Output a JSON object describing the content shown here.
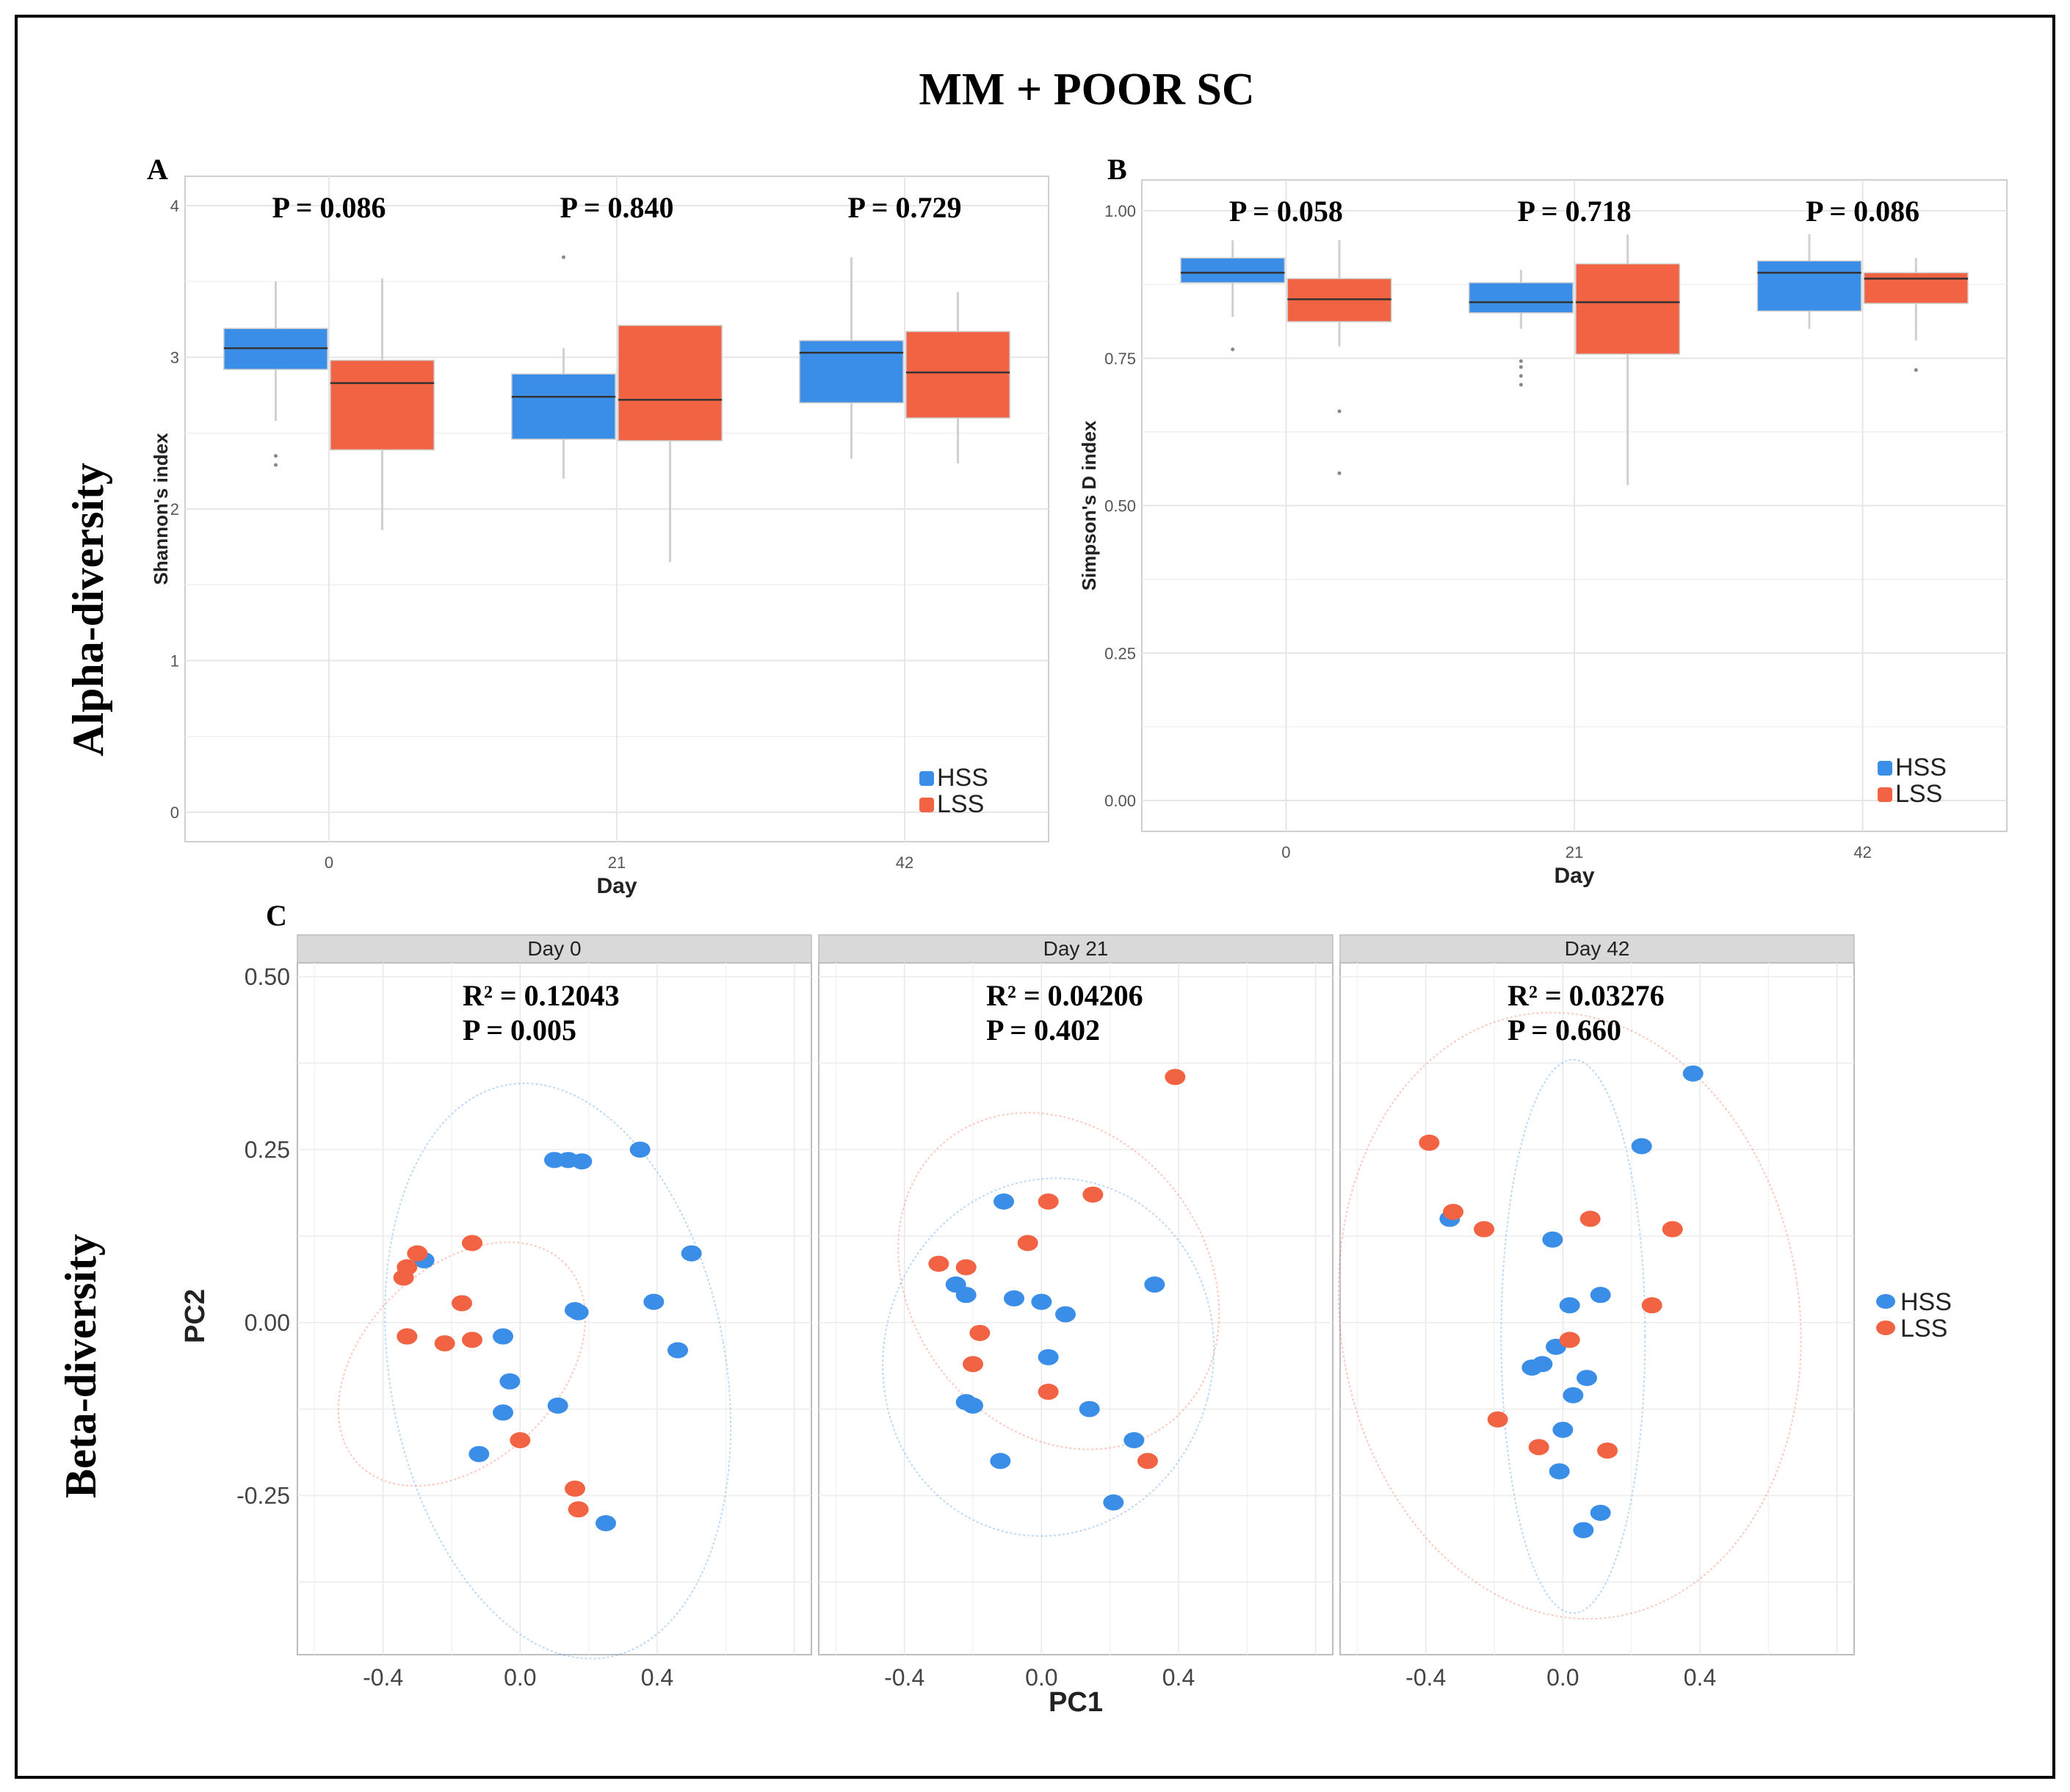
{
  "figure": {
    "title": "MM + POOR SC",
    "row_labels": {
      "alpha": "Alpha-diversity",
      "beta": "Beta-diversity"
    }
  },
  "colors": {
    "HSS": "#3b8ee8",
    "LSS": "#f26344",
    "grid": "#e6e6e6",
    "strip": "#d9d9d9",
    "frame": "#333333"
  },
  "chart_data": [
    {
      "panel": "A",
      "type": "box",
      "xlabel": "Day",
      "ylabel": "Shannon's index",
      "categories": [
        "0",
        "21",
        "42"
      ],
      "yticks": [
        0,
        1,
        2,
        3,
        4
      ],
      "ylim": [
        0,
        4
      ],
      "pvalues": [
        "P = 0.086",
        "P = 0.840",
        "P = 0.729"
      ],
      "legend": [
        "HSS",
        "LSS"
      ],
      "legend_position": "bottom-right",
      "series": [
        {
          "name": "HSS",
          "boxes": [
            {
              "q1": 2.92,
              "median": 3.06,
              "q3": 3.19,
              "low": 2.58,
              "high": 3.5,
              "outliers": [
                2.35,
                2.29
              ]
            },
            {
              "q1": 2.46,
              "median": 2.74,
              "q3": 2.89,
              "low": 2.2,
              "high": 3.06,
              "outliers": [
                3.66
              ]
            },
            {
              "q1": 2.7,
              "median": 3.03,
              "q3": 3.11,
              "low": 2.33,
              "high": 3.66,
              "outliers": []
            }
          ]
        },
        {
          "name": "LSS",
          "boxes": [
            {
              "q1": 2.39,
              "median": 2.83,
              "q3": 2.98,
              "low": 1.86,
              "high": 3.52,
              "outliers": []
            },
            {
              "q1": 2.45,
              "median": 2.72,
              "q3": 3.21,
              "low": 1.65,
              "high": 3.21,
              "outliers": []
            },
            {
              "q1": 2.6,
              "median": 2.9,
              "q3": 3.17,
              "low": 2.3,
              "high": 3.43,
              "outliers": []
            }
          ]
        }
      ]
    },
    {
      "panel": "B",
      "type": "box",
      "xlabel": "Day",
      "ylabel": "Simpson's D index",
      "categories": [
        "0",
        "21",
        "42"
      ],
      "yticks": [
        "0.00",
        "0.25",
        "0.50",
        "0.75",
        "1.00"
      ],
      "ylim": [
        0,
        1
      ],
      "pvalues": [
        "P = 0.058",
        "P = 0.718",
        "P = 0.086"
      ],
      "legend": [
        "HSS",
        "LSS"
      ],
      "legend_position": "bottom-right",
      "series": [
        {
          "name": "HSS",
          "boxes": [
            {
              "q1": 0.878,
              "median": 0.895,
              "q3": 0.92,
              "low": 0.82,
              "high": 0.95,
              "outliers": [
                0.765
              ]
            },
            {
              "q1": 0.827,
              "median": 0.845,
              "q3": 0.878,
              "low": 0.8,
              "high": 0.9,
              "outliers": [
                0.745,
                0.735,
                0.72,
                0.705
              ]
            },
            {
              "q1": 0.83,
              "median": 0.895,
              "q3": 0.915,
              "low": 0.8,
              "high": 0.96,
              "outliers": []
            }
          ]
        },
        {
          "name": "LSS",
          "boxes": [
            {
              "q1": 0.812,
              "median": 0.85,
              "q3": 0.885,
              "low": 0.77,
              "high": 0.95,
              "outliers": [
                0.66,
                0.555
              ]
            },
            {
              "q1": 0.757,
              "median": 0.845,
              "q3": 0.91,
              "low": 0.535,
              "high": 0.96,
              "outliers": []
            },
            {
              "q1": 0.843,
              "median": 0.885,
              "q3": 0.895,
              "low": 0.78,
              "high": 0.92,
              "outliers": [
                0.73
              ]
            }
          ]
        }
      ]
    },
    {
      "panel": "C",
      "type": "scatter",
      "xlabel": "PC1",
      "ylabel": "PC2",
      "xticks": [
        "-0.4",
        "0.0",
        "0.4"
      ],
      "yticks": [
        "0.50",
        "0.25",
        "0.00",
        "-0.25"
      ],
      "xlim": [
        -0.65,
        0.85
      ],
      "ylim": [
        -0.48,
        0.52
      ],
      "legend": [
        "HSS",
        "LSS"
      ],
      "legend_position": "right",
      "facets": [
        {
          "label": "Day 0",
          "stats": [
            "R² = 0.12043",
            "P = 0.005"
          ],
          "HSS": [
            [
              -0.28,
              0.09
            ],
            [
              0.1,
              0.235
            ],
            [
              0.14,
              0.235
            ],
            [
              0.18,
              0.233
            ],
            [
              0.35,
              0.25
            ],
            [
              0.5,
              0.1
            ],
            [
              0.39,
              0.03
            ],
            [
              0.17,
              0.015
            ],
            [
              0.16,
              0.018
            ],
            [
              -0.33,
              -0.02
            ],
            [
              -0.05,
              -0.02
            ],
            [
              -0.03,
              -0.085
            ],
            [
              -0.05,
              -0.13
            ],
            [
              0.11,
              -0.12
            ],
            [
              -0.12,
              -0.19
            ],
            [
              0.46,
              -0.04
            ],
            [
              0.25,
              -0.29
            ]
          ],
          "LSS": [
            [
              -0.3,
              0.1
            ],
            [
              -0.33,
              0.08
            ],
            [
              -0.34,
              0.065
            ],
            [
              -0.14,
              0.115
            ],
            [
              -0.17,
              0.028
            ],
            [
              -0.33,
              -0.02
            ],
            [
              -0.22,
              -0.03
            ],
            [
              -0.14,
              -0.025
            ],
            [
              0.0,
              -0.17
            ],
            [
              0.16,
              -0.24
            ],
            [
              0.17,
              -0.27
            ]
          ],
          "ellipses": {
            "HSS": {
              "cx": 0.11,
              "cy": -0.07,
              "rx": 0.49,
              "ry": 0.42,
              "angle": -10
            },
            "LSS": {
              "cx": -0.17,
              "cy": -0.06,
              "rx": 0.42,
              "ry": 0.14,
              "angle": -44
            }
          }
        },
        {
          "label": "Day 21",
          "stats": [
            "R² = 0.04206",
            "P = 0.402"
          ],
          "HSS": [
            [
              -0.11,
              0.175
            ],
            [
              -0.25,
              0.055
            ],
            [
              -0.22,
              0.04
            ],
            [
              -0.08,
              0.035
            ],
            [
              0.0,
              0.03
            ],
            [
              0.07,
              0.012
            ],
            [
              0.33,
              0.055
            ],
            [
              0.02,
              -0.05
            ],
            [
              -0.22,
              -0.115
            ],
            [
              -0.2,
              -0.12
            ],
            [
              0.14,
              -0.125
            ],
            [
              0.27,
              -0.17
            ],
            [
              -0.12,
              -0.2
            ],
            [
              0.21,
              -0.26
            ]
          ],
          "LSS": [
            [
              -0.3,
              0.085
            ],
            [
              -0.22,
              0.08
            ],
            [
              0.02,
              0.175
            ],
            [
              0.15,
              0.185
            ],
            [
              -0.04,
              0.115
            ],
            [
              -0.18,
              -0.015
            ],
            [
              -0.2,
              -0.06
            ],
            [
              0.02,
              -0.1
            ],
            [
              0.31,
              -0.2
            ],
            [
              0.39,
              0.355
            ]
          ],
          "ellipses": {
            "HSS": {
              "cx": 0.02,
              "cy": -0.05,
              "rx": 0.48,
              "ry": 0.26,
              "angle": 15
            },
            "LSS": {
              "cx": 0.05,
              "cy": 0.06,
              "rx": 0.43,
              "ry": 0.26,
              "angle": -38
            }
          }
        },
        {
          "label": "Day 42",
          "stats": [
            "R² = 0.03276",
            "P = 0.660"
          ],
          "HSS": [
            [
              0.38,
              0.36
            ],
            [
              0.23,
              0.255
            ],
            [
              -0.33,
              0.15
            ],
            [
              -0.03,
              0.12
            ],
            [
              0.02,
              0.025
            ],
            [
              0.11,
              0.04
            ],
            [
              -0.02,
              -0.035
            ],
            [
              -0.09,
              -0.065
            ],
            [
              -0.06,
              -0.06
            ],
            [
              0.03,
              -0.105
            ],
            [
              0.07,
              -0.08
            ],
            [
              0.0,
              -0.155
            ],
            [
              -0.01,
              -0.215
            ],
            [
              0.11,
              -0.275
            ],
            [
              0.06,
              -0.3
            ]
          ],
          "LSS": [
            [
              -0.39,
              0.26
            ],
            [
              -0.32,
              0.16
            ],
            [
              -0.23,
              0.135
            ],
            [
              0.08,
              0.15
            ],
            [
              0.32,
              0.135
            ],
            [
              0.26,
              0.025
            ],
            [
              0.02,
              -0.025
            ],
            [
              -0.19,
              -0.14
            ],
            [
              -0.07,
              -0.18
            ],
            [
              0.13,
              -0.185
            ]
          ],
          "ellipses": {
            "HSS": {
              "cx": 0.03,
              "cy": -0.02,
              "rx": 0.21,
              "ry": 0.4,
              "angle": 0
            },
            "LSS": {
              "cx": 0.02,
              "cy": 0.01,
              "rx": 0.67,
              "ry": 0.44,
              "angle": -8
            }
          }
        }
      ]
    }
  ]
}
